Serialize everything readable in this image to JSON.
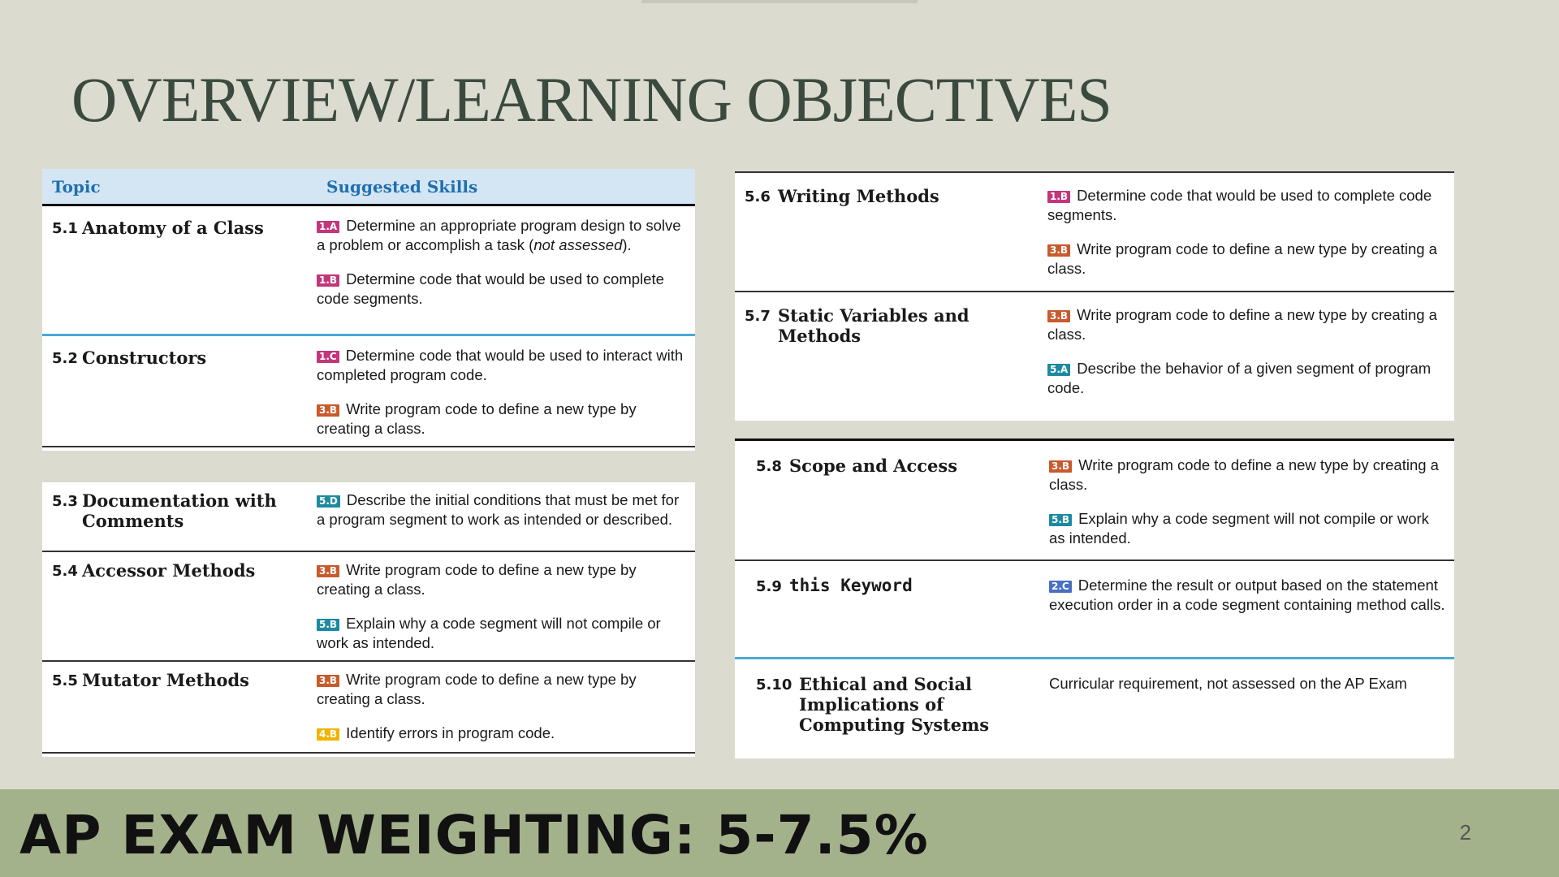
{
  "title": "OVERVIEW/LEARNING OBJECTIVES",
  "table_header": {
    "topic": "Topic",
    "skills": "Suggested Skills"
  },
  "badge_colors": {
    "1": "#c2367c",
    "2": "#4a6fc4",
    "3": "#c85a2c",
    "4": "#f0b400",
    "5": "#1c8aa0"
  },
  "left_group_a": [
    {
      "num": "5.1",
      "topic": "Anatomy of a Class",
      "skills": [
        {
          "code": "1.A",
          "text": "Determine an appropriate program design to solve a problem or accomplish a task (",
          "italic": "not assessed",
          "tail": ")."
        },
        {
          "code": "1.B",
          "text": "Determine code that would be used to complete code segments."
        }
      ]
    },
    {
      "num": "5.2",
      "topic": "Constructors",
      "skills": [
        {
          "code": "1.C",
          "text": "Determine code that would be used to interact with completed program code."
        },
        {
          "code": "3.B",
          "text": "Write program code to define a new type by creating a class."
        }
      ]
    }
  ],
  "left_group_b": [
    {
      "num": "5.3",
      "topic": "Documentation with\nComments",
      "skills": [
        {
          "code": "5.D",
          "text": "Describe the initial conditions that must be met for a program segment to work as intended or described."
        }
      ]
    },
    {
      "num": "5.4",
      "topic": "Accessor Methods",
      "skills": [
        {
          "code": "3.B",
          "text": "Write program code to define a new type by creating a class."
        },
        {
          "code": "5.B",
          "text": "Explain why a code segment will not compile or work as intended."
        }
      ]
    },
    {
      "num": "5.5",
      "topic": "Mutator Methods",
      "skills": [
        {
          "code": "3.B",
          "text": "Write program code to define a new type by creating a class."
        },
        {
          "code": "4.B",
          "text": "Identify errors in program code."
        }
      ]
    }
  ],
  "right_group_a": [
    {
      "num": "5.6",
      "topic": "Writing Methods",
      "skills": [
        {
          "code": "1.B",
          "text": "Determine code that would be used to complete code segments."
        },
        {
          "code": "3.B",
          "text": "Write program code to define a new type by creating a class."
        }
      ]
    },
    {
      "num": "5.7",
      "topic": "Static Variables and\nMethods",
      "skills": [
        {
          "code": "3.B",
          "text": "Write program code to define a new type by creating a class."
        },
        {
          "code": "5.A",
          "text": "Describe the behavior of a given segment of program code."
        }
      ]
    }
  ],
  "right_group_b": [
    {
      "num": "5.8",
      "topic": "Scope and Access",
      "skills": [
        {
          "code": "3.B",
          "text": "Write program code to define a new type by creating a class."
        },
        {
          "code": "5.B",
          "text": "Explain why a code segment will not compile or work as intended."
        }
      ]
    },
    {
      "num": "5.9",
      "topic": "this Keyword",
      "skills": [
        {
          "code": "2.C",
          "text": "Determine the result or output based on the statement execution order in a code segment containing method calls."
        }
      ]
    },
    {
      "num": "5.10",
      "topic": "Ethical and Social\nImplications of\nComputing Systems",
      "note": "Curricular requirement, not assessed on the AP Exam"
    }
  ],
  "weighting": "AP Exam Weighting: 5-7.5%",
  "page_number": "2"
}
